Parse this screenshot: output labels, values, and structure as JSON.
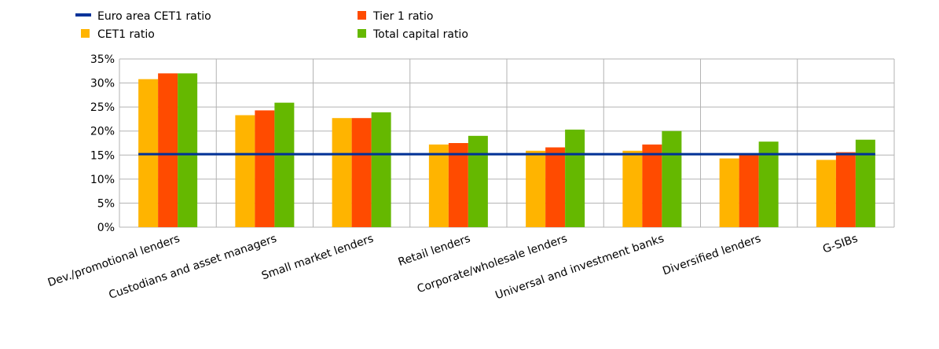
{
  "chart_data": {
    "type": "bar",
    "categories": [
      "Dev./promotional lenders",
      "Custodians and asset managers",
      "Small market lenders",
      "Retail lenders",
      "Corporate/wholesale lenders",
      "Universal and investment banks",
      "Diversified lenders",
      "G-SIBs"
    ],
    "series": [
      {
        "name": "CET1  ratio",
        "color": "#FFB400",
        "values": [
          30.8,
          23.3,
          22.7,
          17.2,
          15.9,
          15.9,
          14.3,
          14.0
        ]
      },
      {
        "name": "Tier 1 ratio",
        "color": "#FF4B00",
        "values": [
          32.0,
          24.3,
          22.7,
          17.5,
          16.6,
          17.2,
          15.2,
          15.6
        ]
      },
      {
        "name": "Total capital ratio",
        "color": "#65B800",
        "values": [
          32.0,
          25.9,
          23.9,
          19.0,
          20.3,
          20.0,
          17.8,
          18.2
        ]
      }
    ],
    "reference_line": {
      "name": "Euro area CET1  ratio",
      "color": "#003299",
      "value": 15.2
    },
    "yticks": [
      "0%",
      "5%",
      "10%",
      "15%",
      "20%",
      "25%",
      "30%",
      "35%"
    ],
    "ylim": [
      0,
      35
    ],
    "grid": true,
    "legend_position": "top-left",
    "gridline_color": "#b3b3b3",
    "title": "",
    "xlabel": "",
    "ylabel": ""
  }
}
